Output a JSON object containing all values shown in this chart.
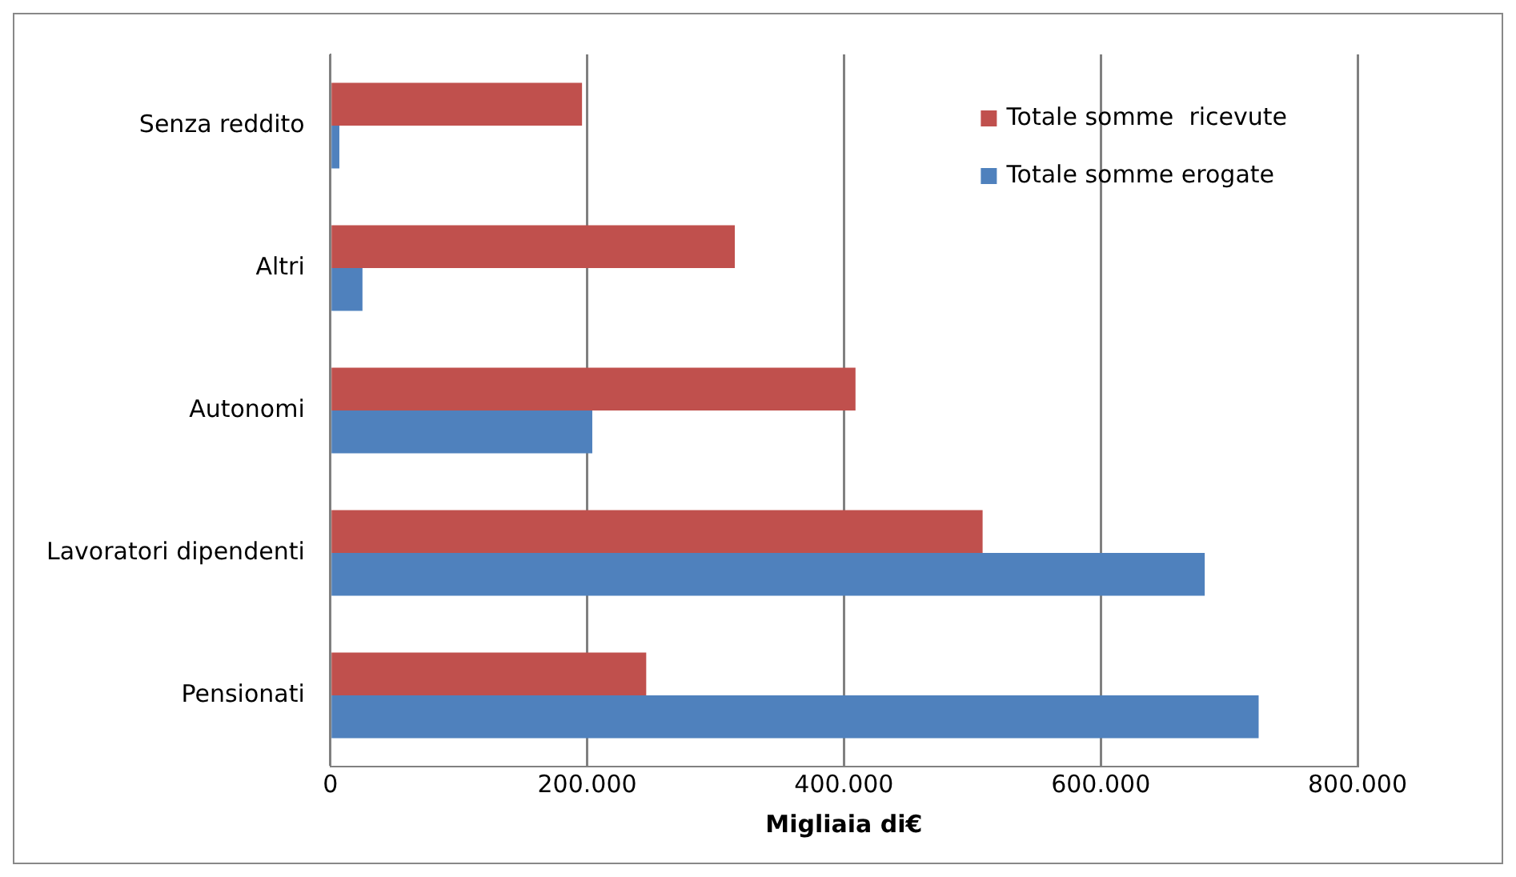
{
  "chart_data": {
    "type": "bar",
    "orientation": "horizontal",
    "xlabel": "Migliaia di€",
    "categories": [
      "Senza reddito",
      "Altri",
      "Autonomi",
      "Lavoratori dipendenti",
      "Pensionati"
    ],
    "series": [
      {
        "name": "Totale somme  ricevute",
        "color": "#c0504d",
        "values": [
          196000,
          315000,
          409000,
          508000,
          246000
        ]
      },
      {
        "name": "Totale somme erogate",
        "color": "#4f81bd",
        "values": [
          7000,
          25000,
          204000,
          681000,
          723000
        ]
      }
    ],
    "xlim": [
      0,
      800000
    ],
    "xticks": [
      0,
      {
        "value": 200000,
        "label": "200.000"
      },
      {
        "value": 400000,
        "label": "400.000"
      },
      {
        "value": 600000,
        "label": "600.000"
      },
      {
        "value": 800000,
        "label": "800.000"
      }
    ],
    "grid": "x",
    "legend": "top right"
  }
}
